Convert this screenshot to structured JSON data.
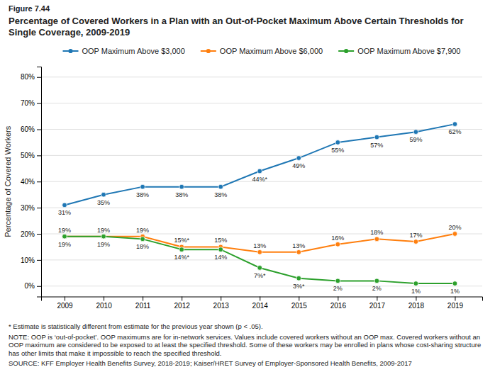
{
  "chart_data": {
    "type": "line",
    "title": "Percentage of Covered Workers in a Plan with an Out-of-Pocket Maximum Above Certain Thresholds for Single Coverage, 2009-2019",
    "ylabel": "Percentage of Covered Workers",
    "annotations": [
      "Figure 7.44",
      "* Estimate is statistically different from estimate for the previous year shown (p < .05).",
      "NOTE: OOP is ‘out-of-pocket’. OOP maximums are for in-network services. Values include covered workers without an OOP max. Covered workers without an OOP maximum are considered to be exposed to at least the specified threshold. Some of these workers may be enrolled in plans whose cost-sharing structure has other limits that make it impossible to reach the specified threshold.",
      "SOURCE: KFF Employer Health Benefits Survey, 2018-2019; Kaiser/HRET Survey of Employer-Sponsored Health Benefits, 2009-2017"
    ],
    "x": [
      2009,
      2010,
      2011,
      2012,
      2013,
      2014,
      2015,
      2016,
      2017,
      2018,
      2019
    ],
    "xlim": [
      2008.4,
      2019.7
    ],
    "xticks": [
      2009,
      2010,
      2011,
      2012,
      2013,
      2014,
      2015,
      2016,
      2017,
      2018,
      2019
    ],
    "ylim": [
      -4,
      84
    ],
    "yticks": [
      {
        "value": 0,
        "label": "0%"
      },
      {
        "value": 10,
        "label": "10%"
      },
      {
        "value": 20,
        "label": "20%"
      },
      {
        "value": 30,
        "label": "30%"
      },
      {
        "value": 40,
        "label": "40%"
      },
      {
        "value": 50,
        "label": "50%"
      },
      {
        "value": 60,
        "label": "60%"
      },
      {
        "value": 70,
        "label": "70%"
      },
      {
        "value": 80,
        "label": "80%"
      }
    ],
    "grid": "y",
    "legend": "top",
    "data_labels": true,
    "series": [
      {
        "name": "OOP Maximum Above $3,000",
        "marker": "circle",
        "values": [
          31,
          35,
          38,
          38,
          38,
          44,
          49,
          55,
          57,
          59,
          62
        ],
        "value_labels": [
          "31%",
          "35%",
          "38%",
          "38%",
          "38%",
          "44%*",
          "49%",
          "55%",
          "57%",
          "59%",
          "62%"
        ]
      },
      {
        "name": "OOP Maximum Above $6,000",
        "marker": "circle",
        "values": [
          19,
          19,
          19,
          15,
          15,
          13,
          13,
          16,
          18,
          17,
          20
        ],
        "value_labels": [
          "19%",
          "19%",
          "19%",
          "15%*",
          "15%",
          "13%",
          "13%",
          "16%",
          "18%",
          "17%",
          "20%"
        ]
      },
      {
        "name": "OOP Maximum Above $7,900",
        "marker": "circle",
        "values": [
          19,
          19,
          18,
          14,
          14,
          7,
          3,
          2,
          2,
          1,
          1
        ],
        "value_labels": [
          "19%",
          "19%",
          "18%",
          "14%*",
          "14%",
          "7%*",
          "3%*",
          "2%",
          "2%",
          "1%",
          "1%"
        ]
      }
    ]
  }
}
